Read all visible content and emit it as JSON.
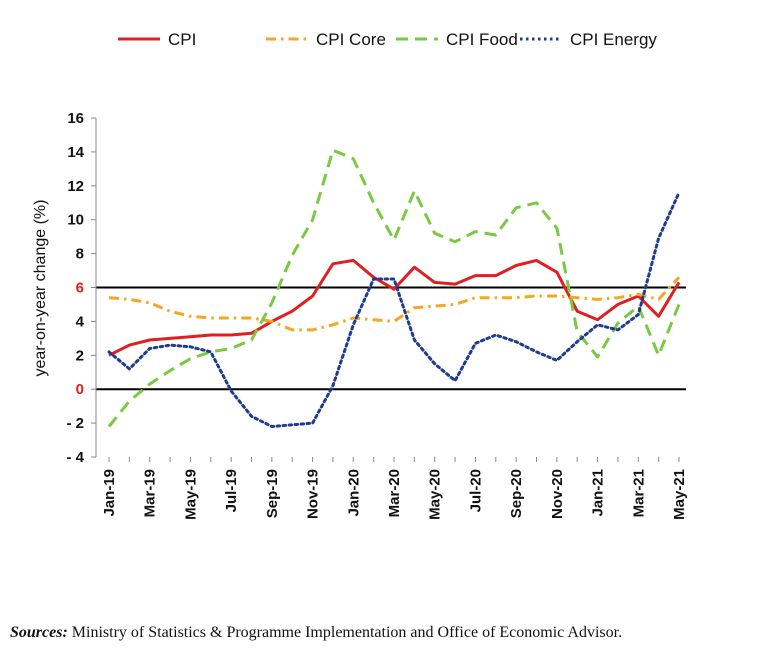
{
  "chart_data": {
    "type": "line",
    "title": "",
    "xlabel": "",
    "ylabel": "year-on-year change (%)",
    "ylim": [
      -4,
      16
    ],
    "yticks": [
      -4,
      -2,
      0,
      2,
      4,
      6,
      8,
      10,
      12,
      14,
      16
    ],
    "x": [
      "Jan-19",
      "Feb-19",
      "Mar-19",
      "Apr-19",
      "May-19",
      "Jun-19",
      "Jul-19",
      "Aug-19",
      "Sep-19",
      "Oct-19",
      "Nov-19",
      "Dec-19",
      "Jan-20",
      "Feb-20",
      "Mar-20",
      "Apr-20",
      "May-20",
      "Jun-20",
      "Jul-20",
      "Aug-20",
      "Sep-20",
      "Oct-20",
      "Nov-20",
      "Dec-20",
      "Jan-21",
      "Feb-21",
      "Mar-21",
      "Apr-21",
      "May-21"
    ],
    "tick_labels": [
      "Jan-19",
      "Mar-19",
      "May-19",
      "Jul-19",
      "Sep-19",
      "Nov-19",
      "Jan-20",
      "Mar-20",
      "May-20",
      "Jul-20",
      "Sep-20",
      "Nov-20",
      "Jan-21",
      "Mar-21",
      "May-21"
    ],
    "reference_lines": [
      0,
      6
    ],
    "legend_position": "top",
    "series": [
      {
        "name": "CPI",
        "color": "#e02020",
        "dash": "solid",
        "values": [
          2.0,
          2.6,
          2.9,
          3.0,
          3.1,
          3.2,
          3.2,
          3.3,
          4.0,
          4.6,
          5.5,
          7.4,
          7.6,
          6.6,
          5.9,
          7.2,
          6.3,
          6.2,
          6.7,
          6.7,
          7.3,
          7.6,
          6.9,
          4.6,
          4.1,
          5.0,
          5.5,
          4.3,
          6.3
        ]
      },
      {
        "name": "CPI Core",
        "color": "#f5a623",
        "dash": "dashdot",
        "values": [
          5.4,
          5.3,
          5.1,
          4.6,
          4.3,
          4.2,
          4.2,
          4.2,
          4.0,
          3.5,
          3.5,
          3.8,
          4.2,
          4.1,
          4.0,
          4.8,
          4.9,
          5.0,
          5.4,
          5.4,
          5.4,
          5.5,
          5.5,
          5.4,
          5.3,
          5.4,
          5.6,
          5.3,
          6.6
        ]
      },
      {
        "name": "CPI Food",
        "color": "#7ac943",
        "dash": "dash",
        "values": [
          -2.2,
          -0.7,
          0.3,
          1.1,
          1.8,
          2.2,
          2.4,
          2.9,
          5.1,
          7.9,
          10.0,
          14.1,
          13.6,
          11.0,
          8.8,
          11.7,
          9.2,
          8.7,
          9.3,
          9.1,
          10.7,
          11.0,
          9.5,
          3.4,
          1.9,
          3.9,
          4.9,
          2.0,
          5.0
        ]
      },
      {
        "name": "CPI Energy",
        "color": "#1f3c8f",
        "dash": "dot",
        "values": [
          2.2,
          1.2,
          2.4,
          2.6,
          2.5,
          2.2,
          -0.1,
          -1.6,
          -2.2,
          -2.1,
          -2.0,
          0.2,
          3.8,
          6.5,
          6.5,
          2.9,
          1.5,
          0.5,
          2.7,
          3.2,
          2.8,
          2.2,
          1.7,
          2.8,
          3.8,
          3.5,
          4.4,
          8.9,
          11.6
        ]
      }
    ]
  },
  "sources": {
    "label": "Sources:",
    "text": "Ministry of Statistics & Programme Implementation and Office of Economic Advisor."
  }
}
